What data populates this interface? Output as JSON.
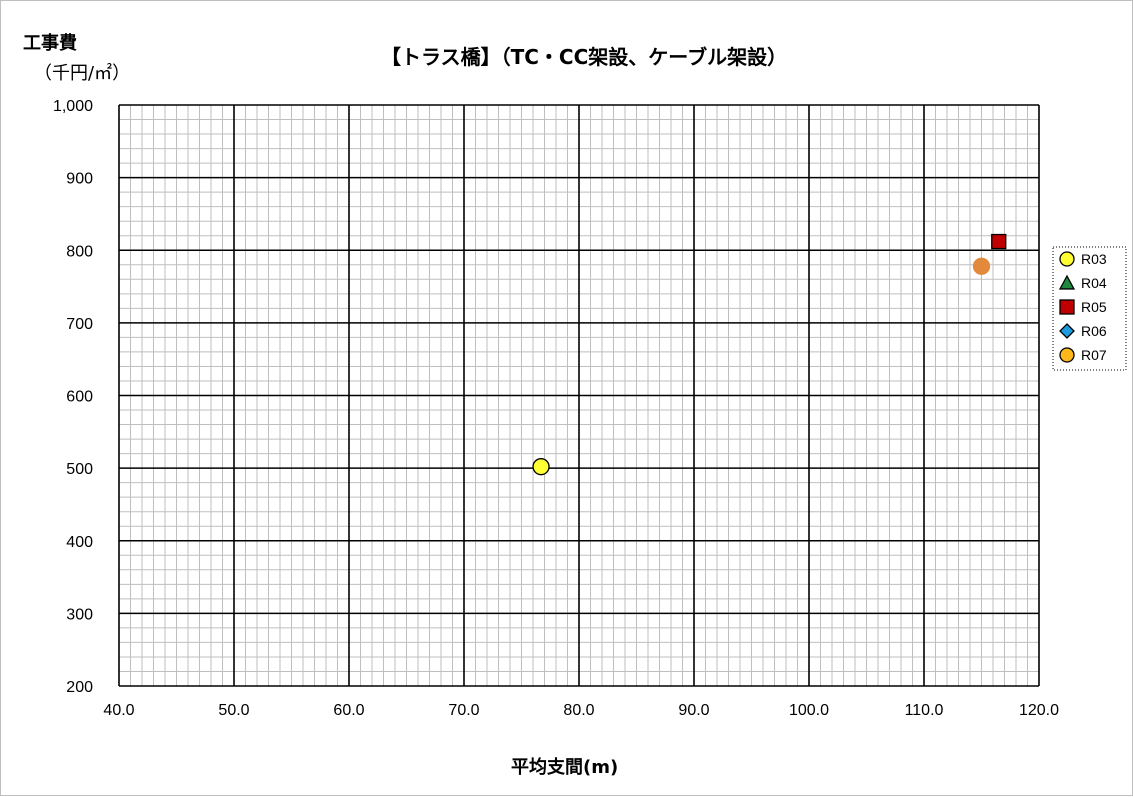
{
  "chart_data": {
    "type": "scatter",
    "title": "【トラス橋】（TC・CC架設、ケーブル架設）",
    "ylabel": [
      "工事費",
      "（千円/㎡）"
    ],
    "xlabel": "平均支間(m)",
    "xlim": [
      40,
      120
    ],
    "ylim": [
      200,
      1000
    ],
    "x_ticks": [
      "40.0",
      "50.0",
      "60.0",
      "70.0",
      "80.0",
      "90.0",
      "100.0",
      "110.0",
      "120.0"
    ],
    "y_ticks": [
      "200",
      "300",
      "400",
      "500",
      "600",
      "700",
      "800",
      "900",
      "1,000"
    ],
    "grid": true,
    "legend_position": "right",
    "series": [
      {
        "name": "R03",
        "marker": "circle",
        "color": "#ffff33",
        "points": [
          {
            "x": 76.7,
            "y": 502
          }
        ]
      },
      {
        "name": "R04",
        "marker": "triangle",
        "color": "#1e8a3e",
        "points": []
      },
      {
        "name": "R05",
        "marker": "square",
        "color": "#c00000",
        "points": [
          {
            "x": 116.5,
            "y": 812
          }
        ]
      },
      {
        "name": "R06",
        "marker": "diamond",
        "color": "#1e9be0",
        "points": []
      },
      {
        "name": "R07",
        "marker": "circle",
        "color": "#e3893c",
        "legend_color": "#ffb81c",
        "points": [
          {
            "x": 115.0,
            "y": 778
          }
        ]
      }
    ]
  }
}
